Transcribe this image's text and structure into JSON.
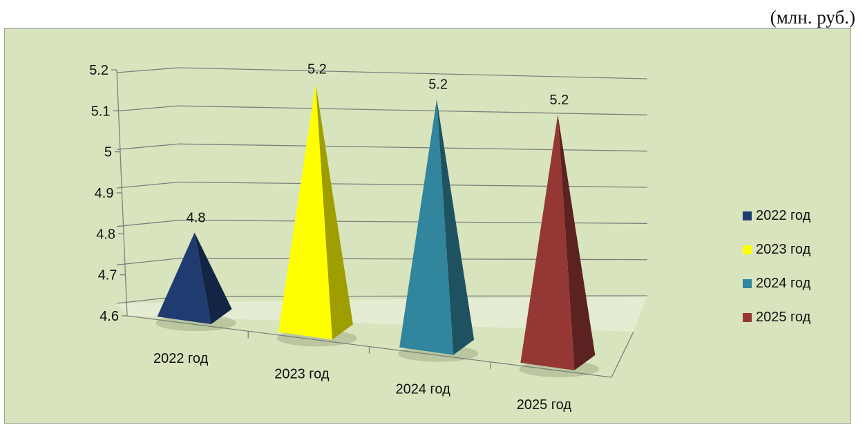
{
  "unit_label": "(млн. руб.)",
  "chart_data": {
    "type": "bar",
    "shape": "pyramid-3d",
    "categories": [
      "2022 год",
      "2023 год",
      "2024 год",
      "2025 год"
    ],
    "values": [
      4.8,
      5.2,
      5.2,
      5.2
    ],
    "data_labels": [
      "4.8",
      "5.2",
      "5.2",
      "5.2"
    ],
    "ylim": [
      4.6,
      5.2
    ],
    "y_ticks": [
      "4.6",
      "4.7",
      "4.8",
      "4.9",
      "5",
      "5.1",
      "5.2"
    ],
    "colors": [
      "#1f3b70",
      "#ffff00",
      "#31859c",
      "#953735"
    ],
    "legend": {
      "position": "right",
      "entries": [
        "2022 год",
        "2023 год",
        "2024 год",
        "2025 год"
      ]
    },
    "title": "",
    "xlabel": "",
    "ylabel": "",
    "background": "#d7e4bd",
    "grid": true
  }
}
